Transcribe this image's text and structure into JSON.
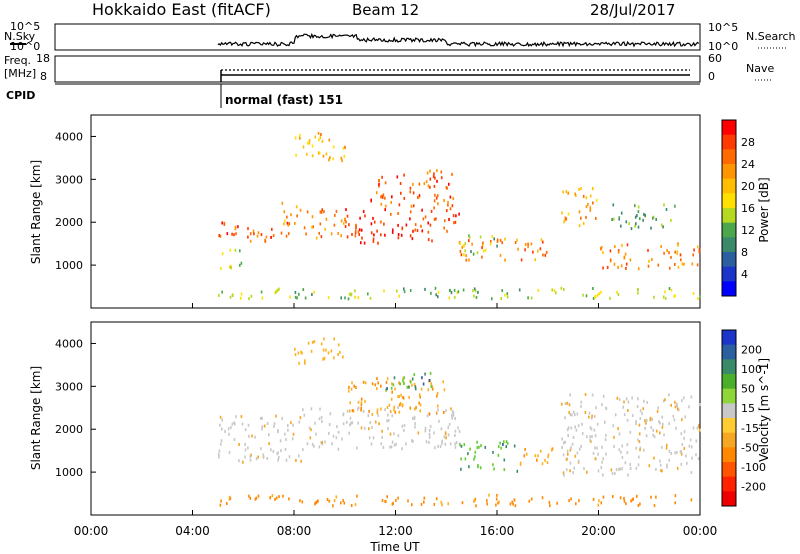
{
  "header": {
    "station": "Hokkaido East (fitACF)",
    "beam": "Beam 12",
    "date": "28/Jul/2017"
  },
  "noise_panel": {
    "left_label": "N.Sky",
    "right_label": "N.Search",
    "ticks": [
      "10^5",
      "10^0"
    ],
    "right_ticks": [
      "10^5",
      "10^0"
    ]
  },
  "freq_panel": {
    "left_label_1": "Freq.",
    "left_label_2": "[MHz]",
    "left_ticks": [
      "18",
      "8"
    ],
    "right_label": "Nave",
    "right_ticks": [
      "60",
      "0"
    ]
  },
  "cpid_panel": {
    "label": "CPID",
    "mode_text": "normal (fast) 151"
  },
  "x_axis": {
    "label": "Time UT",
    "ticks": [
      "00:00",
      "04:00",
      "08:00",
      "12:00",
      "16:00",
      "20:00",
      "00:00"
    ]
  },
  "chart_data": [
    {
      "type": "heatmap",
      "title": "Power",
      "xlabel": "Time UT",
      "ylabel": "Slant Range [km]",
      "x_range_hours": [
        0,
        24
      ],
      "ylim": [
        0,
        4500
      ],
      "y_ticks": [
        1000,
        2000,
        3000,
        4000
      ],
      "colorbar": {
        "label": "Power [dB]",
        "ticks": [
          "28",
          "24",
          "20",
          "16",
          "12",
          "8",
          "4"
        ],
        "colors": [
          "#ff0000",
          "#ff3a00",
          "#ff6a00",
          "#ff9500",
          "#ffbf00",
          "#ffe000",
          "#b5d820",
          "#4ca64c",
          "#3a8a6a",
          "#2c5fa0",
          "#1a35c8",
          "#0000ff"
        ]
      },
      "data_start_hour": 5.0,
      "echo_regions": [
        {
          "t0": 5.0,
          "t1": 7.8,
          "r0": 1500,
          "r1": 2000,
          "level": 24
        },
        {
          "t0": 5.0,
          "t1": 6.0,
          "r0": 900,
          "r1": 1400,
          "level": 14
        },
        {
          "t0": 7.5,
          "t1": 8.3,
          "r0": 1900,
          "r1": 2600,
          "level": 20
        },
        {
          "t0": 8.3,
          "t1": 10.0,
          "r0": 1600,
          "r1": 2300,
          "level": 22
        },
        {
          "t0": 10.0,
          "t1": 14.5,
          "r0": 1500,
          "r1": 2300,
          "level": 26
        },
        {
          "t0": 11.0,
          "t1": 14.3,
          "r0": 2300,
          "r1": 3200,
          "level": 24
        },
        {
          "t0": 8.0,
          "t1": 10.0,
          "r0": 3400,
          "r1": 4100,
          "level": 18
        },
        {
          "t0": 14.5,
          "t1": 18.0,
          "r0": 1100,
          "r1": 1600,
          "level": 22
        },
        {
          "t0": 14.5,
          "t1": 16.0,
          "r0": 1200,
          "r1": 1700,
          "level": 12
        },
        {
          "t0": 18.5,
          "t1": 20.0,
          "r0": 1900,
          "r1": 2800,
          "level": 20
        },
        {
          "t0": 20.0,
          "t1": 24.0,
          "r0": 900,
          "r1": 1500,
          "level": 22
        },
        {
          "t0": 20.5,
          "t1": 23.0,
          "r0": 1800,
          "r1": 2400,
          "level": 10
        },
        {
          "t0": 5.0,
          "t1": 24.0,
          "r0": 200,
          "r1": 450,
          "level": 12
        }
      ]
    },
    {
      "type": "heatmap",
      "title": "Velocity",
      "xlabel": "Time UT",
      "ylabel": "Slant Range [km]",
      "x_range_hours": [
        0,
        24
      ],
      "ylim": [
        0,
        4500
      ],
      "y_ticks": [
        1000,
        2000,
        3000,
        4000
      ],
      "colorbar": {
        "label": "Velocity [m s^-1]",
        "ticks": [
          "200",
          "100",
          "50",
          "15",
          "-15",
          "-50",
          "-100",
          "-200"
        ],
        "colors": [
          "#1a35c8",
          "#2c5fa0",
          "#3a8a6a",
          "#4caf2c",
          "#8ed63a",
          "#c8c8c8",
          "#ffcc33",
          "#f5a623",
          "#ff8800",
          "#ff5500",
          "#ff2200",
          "#ee0000"
        ]
      },
      "data_start_hour": 5.0,
      "echo_regions": [
        {
          "t0": 5.0,
          "t1": 8.3,
          "r0": 1200,
          "r1": 2300,
          "v": 0
        },
        {
          "t0": 8.3,
          "t1": 14.5,
          "r0": 1500,
          "r1": 2500,
          "v": 0
        },
        {
          "t0": 10.0,
          "t1": 14.0,
          "r0": 2300,
          "r1": 3200,
          "v": -50
        },
        {
          "t0": 11.5,
          "t1": 13.5,
          "r0": 2900,
          "r1": 3400,
          "v": 40
        },
        {
          "t0": 14.5,
          "t1": 16.8,
          "r0": 1000,
          "r1": 1700,
          "v": 40
        },
        {
          "t0": 16.8,
          "t1": 18.2,
          "r0": 1100,
          "r1": 1600,
          "v": -50
        },
        {
          "t0": 18.5,
          "t1": 24.0,
          "r0": 900,
          "r1": 2800,
          "v": 0
        },
        {
          "t0": 8.0,
          "t1": 10.0,
          "r0": 3500,
          "r1": 4100,
          "v": -30
        },
        {
          "t0": 5.0,
          "t1": 24.0,
          "r0": 200,
          "r1": 450,
          "v": -60
        }
      ]
    }
  ]
}
